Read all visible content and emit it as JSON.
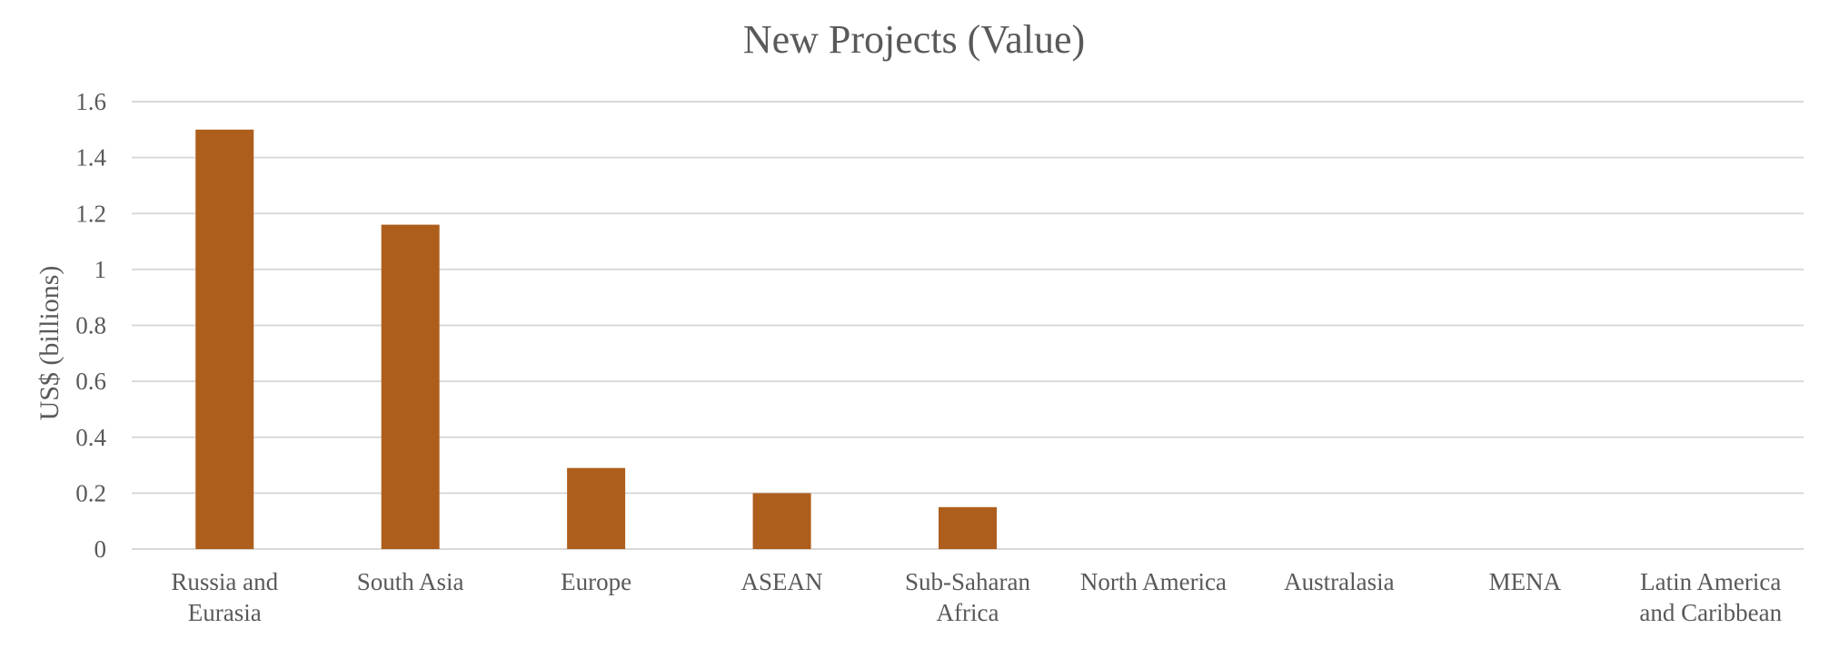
{
  "chart_data": {
    "type": "bar",
    "title": "New Projects (Value)",
    "xlabel": "",
    "ylabel": "US$ (billions)",
    "categories": [
      [
        "Russia and",
        "Eurasia"
      ],
      [
        "South Asia"
      ],
      [
        "Europe"
      ],
      [
        "ASEAN"
      ],
      [
        "Sub-Saharan",
        "Africa"
      ],
      [
        "North America"
      ],
      [
        "Australasia"
      ],
      [
        "MENA"
      ],
      [
        "Latin America",
        "and Caribbean"
      ]
    ],
    "values": [
      1.5,
      1.16,
      0.29,
      0.2,
      0.15,
      0,
      0,
      0,
      0
    ],
    "ylim": [
      0,
      1.6
    ],
    "yticks": [
      "0",
      "0.2",
      "0.4",
      "0.6",
      "0.8",
      "1",
      "1.2",
      "1.4",
      "1.6"
    ],
    "grid": true,
    "legend": "none",
    "colors": {
      "bar": "#AE5E1C",
      "grid": "#D9D9D9",
      "text": "#595959"
    }
  }
}
